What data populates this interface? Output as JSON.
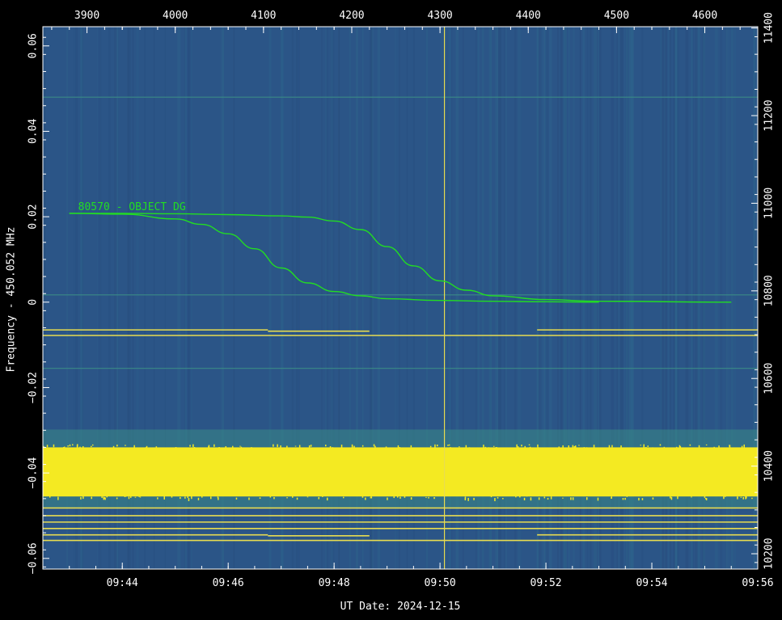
{
  "chart_data": {
    "type": "line",
    "title": "",
    "xlabel": "UT Date: 2024-12-15",
    "ylabel": "Frequency - 450.052 MHz",
    "x_bottom": {
      "range": [
        "09:42:30",
        "09:56:00"
      ],
      "ticks": [
        "09:44",
        "09:46",
        "09:48",
        "09:50",
        "09:52",
        "09:54",
        "09:56"
      ]
    },
    "x_top": {
      "range": [
        3850,
        4660
      ],
      "ticks": [
        3900,
        4000,
        4100,
        4200,
        4300,
        4400,
        4500,
        4600
      ]
    },
    "y_left": {
      "range": [
        -0.0625,
        0.0645
      ],
      "ticks": [
        0.06,
        0.04,
        0.02,
        0,
        -0.02,
        -0.04,
        -0.06
      ],
      "tick_labels": [
        "0.06",
        "0.04",
        "0.02",
        "0",
        "−0.02",
        "−0.04",
        "−0.06"
      ]
    },
    "y_right": {
      "range": [
        10165,
        11403
      ],
      "ticks": [
        11400,
        11200,
        11000,
        10800,
        10600,
        10400,
        10200
      ]
    },
    "background": {
      "type": "heatmap",
      "colormap": [
        "#2b5587",
        "#2e6a8e",
        "#3a8a86",
        "#ffee22"
      ],
      "saturated_band": {
        "y_range": [
          -0.0455,
          -0.034
        ],
        "color": "#f4ea22"
      }
    },
    "series": [
      {
        "color": "#22dd22",
        "x": [
          "09:43:00",
          "09:44:00",
          "09:45:00",
          "09:45:30",
          "09:46:00",
          "09:46:30",
          "09:47:00",
          "09:47:30",
          "09:48:00",
          "09:48:30",
          "09:49:00",
          "09:50:00",
          "09:51:00",
          "09:52:00",
          "09:53:00"
        ],
        "y": [
          0.0208,
          0.0206,
          0.0195,
          0.0182,
          0.016,
          0.0125,
          0.008,
          0.0045,
          0.0025,
          0.0015,
          0.0008,
          0.0004,
          0.0002,
          0.0001,
          0.0
        ]
      },
      {
        "color": "#22dd22",
        "x": [
          "09:43:00",
          "09:44:00",
          "09:45:00",
          "09:46:00",
          "09:47:00",
          "09:47:30",
          "09:48:00",
          "09:48:30",
          "09:49:00",
          "09:49:30",
          "09:50:00",
          "09:50:30",
          "09:51:00",
          "09:52:00",
          "09:53:00",
          "09:55:30"
        ],
        "y": [
          0.0208,
          0.0208,
          0.0207,
          0.0205,
          0.0202,
          0.0199,
          0.019,
          0.017,
          0.013,
          0.0085,
          0.005,
          0.0028,
          0.0015,
          0.0006,
          0.0002,
          0.0
        ]
      }
    ],
    "annotations": [
      {
        "text": "80570 - OBJECT DG",
        "x": "09:43:10",
        "y": 0.0215
      }
    ],
    "markers": {
      "vertical_line_time": "09:50:05",
      "vertical_line_color": "#e8dc50",
      "horizontal_lines": [
        {
          "y": -0.0065,
          "x_range": [
            "09:42:30",
            "09:46:45"
          ],
          "color": "#e8dc50"
        },
        {
          "y": -0.0068,
          "x_range": [
            "09:46:45",
            "09:48:40"
          ],
          "color": "#e8dc50"
        },
        {
          "y": -0.0065,
          "x_range": [
            "09:51:50",
            "09:56:00"
          ],
          "color": "#e8dc50"
        },
        {
          "y": -0.0078,
          "x_range": [
            "09:42:30",
            "09:56:00"
          ],
          "color": "#e8dc50"
        },
        {
          "y": -0.0482,
          "x_range": [
            "09:42:30",
            "09:56:00"
          ],
          "color": "#e8dc50"
        },
        {
          "y": -0.05,
          "x_range": [
            "09:42:30",
            "09:56:00"
          ],
          "color": "#e8dc50"
        },
        {
          "y": -0.0515,
          "x_range": [
            "09:42:30",
            "09:56:00"
          ],
          "color": "#e8dc50"
        },
        {
          "y": -0.053,
          "x_range": [
            "09:42:30",
            "09:56:00"
          ],
          "color": "#e8dc50"
        },
        {
          "y": -0.0545,
          "x_range": [
            "09:42:30",
            "09:46:45"
          ],
          "color": "#e8dc50"
        },
        {
          "y": -0.0547,
          "x_range": [
            "09:46:45",
            "09:48:40"
          ],
          "color": "#e8dc50"
        },
        {
          "y": -0.0545,
          "x_range": [
            "09:51:50",
            "09:56:00"
          ],
          "color": "#e8dc50"
        },
        {
          "y": -0.0558,
          "x_range": [
            "09:42:30",
            "09:56:00"
          ],
          "color": "#e8dc50"
        }
      ],
      "faint_lines": [
        {
          "y": 0.048,
          "color": "#3a8a86"
        },
        {
          "y": 0.0017,
          "color": "#3a8a86"
        },
        {
          "y": -0.0155,
          "color": "#3a8a86"
        }
      ]
    }
  }
}
